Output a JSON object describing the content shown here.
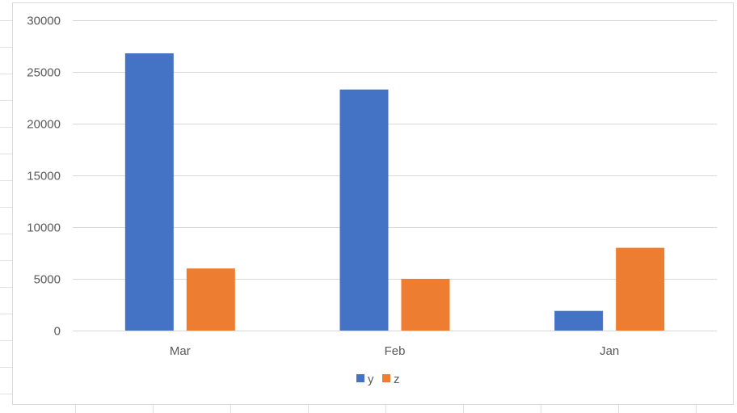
{
  "chart_data": {
    "type": "bar",
    "categories": [
      "Mar",
      "Feb",
      "Jan"
    ],
    "series": [
      {
        "name": "y",
        "values": [
          26800,
          23300,
          1900
        ],
        "color": "#4472C4"
      },
      {
        "name": "z",
        "values": [
          6000,
          5000,
          8000
        ],
        "color": "#ED7D31"
      }
    ],
    "title": "",
    "xlabel": "",
    "ylabel": "",
    "ylim": [
      0,
      30000
    ],
    "yticks": [
      0,
      5000,
      10000,
      15000,
      20000,
      25000,
      30000
    ],
    "grid": true,
    "legend": "bottom"
  }
}
